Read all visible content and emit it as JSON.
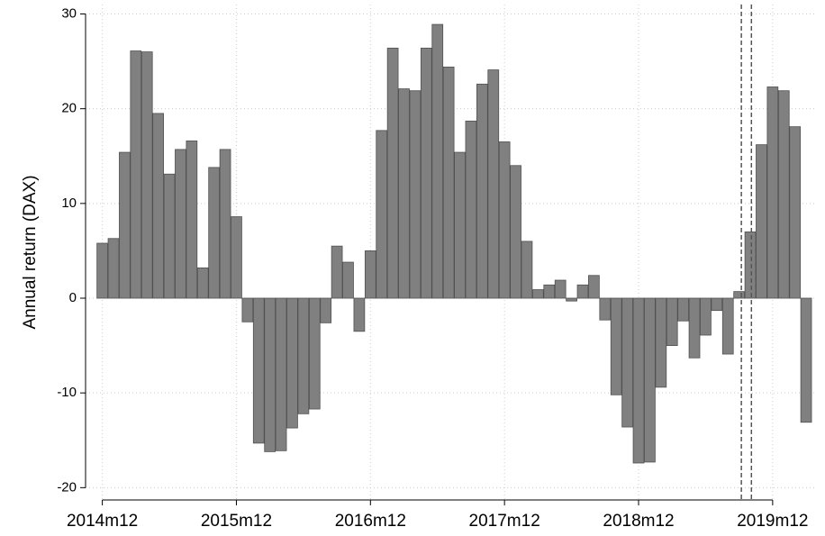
{
  "chart_data": {
    "type": "bar",
    "y_label": "Annual return (DAX)",
    "x": [
      659,
      660,
      661,
      662,
      663,
      664,
      665,
      666,
      667,
      668,
      669,
      670,
      671,
      672,
      673,
      674,
      675,
      676,
      677,
      678,
      679,
      680,
      681,
      682,
      683,
      684,
      685,
      686,
      687,
      688,
      689,
      690,
      691,
      692,
      693,
      694,
      695,
      696,
      697,
      698,
      699,
      700,
      701,
      702,
      703,
      704,
      705,
      706,
      707,
      708,
      709,
      710,
      711,
      712,
      713,
      714,
      715,
      716,
      717,
      718,
      719,
      720,
      721,
      722
    ],
    "values": [
      5.8,
      6.3,
      15.4,
      26.1,
      26.0,
      19.5,
      13.1,
      15.7,
      16.6,
      3.2,
      13.8,
      15.7,
      8.6,
      -2.5,
      -15.3,
      -16.2,
      -16.1,
      -13.7,
      -12.2,
      -11.7,
      -2.6,
      5.5,
      3.8,
      -3.5,
      5.0,
      17.7,
      26.4,
      22.1,
      21.9,
      26.4,
      28.9,
      24.4,
      15.4,
      18.7,
      22.6,
      24.1,
      16.5,
      14.0,
      6.0,
      0.9,
      1.4,
      1.9,
      -0.3,
      1.4,
      2.4,
      -2.3,
      -10.2,
      -13.6,
      -17.4,
      -17.3,
      -9.4,
      -5.0,
      -2.4,
      -6.3,
      -3.9,
      -1.3,
      -5.9,
      0.7,
      7.0,
      16.2,
      22.3,
      21.9,
      18.1,
      -13.1
    ],
    "color": "#808080",
    "xlim": [
      657.5,
      722.8
    ],
    "xticks": [
      {
        "value": 659,
        "label": "2014m12"
      },
      {
        "value": 671,
        "label": "2015m12"
      },
      {
        "value": 683,
        "label": "2016m12"
      },
      {
        "value": 695,
        "label": "2017m12"
      },
      {
        "value": 707,
        "label": "2018m12"
      },
      {
        "value": 719,
        "label": "2019m12"
      }
    ],
    "ylim": [
      -21.3,
      31
    ],
    "yticks": [
      -20,
      -10,
      0,
      10,
      20,
      30
    ],
    "grid": true,
    "xlines": [
      716.2,
      717.1
    ]
  }
}
